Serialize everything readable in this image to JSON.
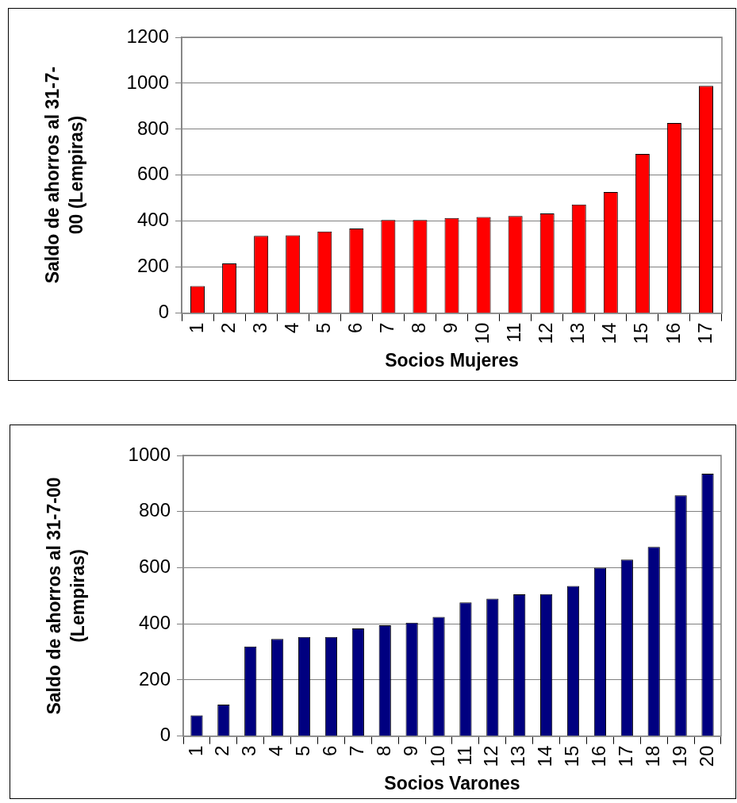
{
  "chart_data": [
    {
      "type": "bar",
      "xlabel": "Socios Mujeres",
      "ylabel": "Saldo de ahorros al 31-7-00 (Lempiras)",
      "categories": [
        "1",
        "2",
        "3",
        "4",
        "5",
        "6",
        "7",
        "8",
        "9",
        "10",
        "11",
        "12",
        "13",
        "14",
        "15",
        "16",
        "17"
      ],
      "series": [
        {
          "color": "#ff0000",
          "values": [
            118,
            216,
            336,
            339,
            355,
            368,
            405,
            405,
            414,
            418,
            423,
            434,
            473,
            527,
            693,
            827,
            989
          ]
        }
      ],
      "ylim": [
        0,
        1200
      ],
      "yticks": [
        0,
        200,
        400,
        600,
        800,
        1000,
        1200
      ],
      "grid": "y",
      "legend": false
    },
    {
      "type": "bar",
      "xlabel": "Socios Varones",
      "ylabel": "Saldo de ahorros al 31-7-00 (Lempiras)",
      "categories": [
        "1",
        "2",
        "3",
        "4",
        "5",
        "6",
        "7",
        "8",
        "9",
        "10",
        "11",
        "12",
        "13",
        "14",
        "15",
        "16",
        "17",
        "18",
        "19",
        "20"
      ],
      "series": [
        {
          "color": "#000080",
          "values": [
            74,
            112,
            319,
            346,
            353,
            353,
            384,
            395,
            404,
            425,
            476,
            490,
            505,
            506,
            535,
            600,
            629,
            674,
            858,
            935
          ]
        }
      ],
      "ylim": [
        0,
        1000
      ],
      "yticks": [
        0,
        200,
        400,
        600,
        800,
        1000
      ],
      "grid": "y",
      "legend": false
    }
  ]
}
